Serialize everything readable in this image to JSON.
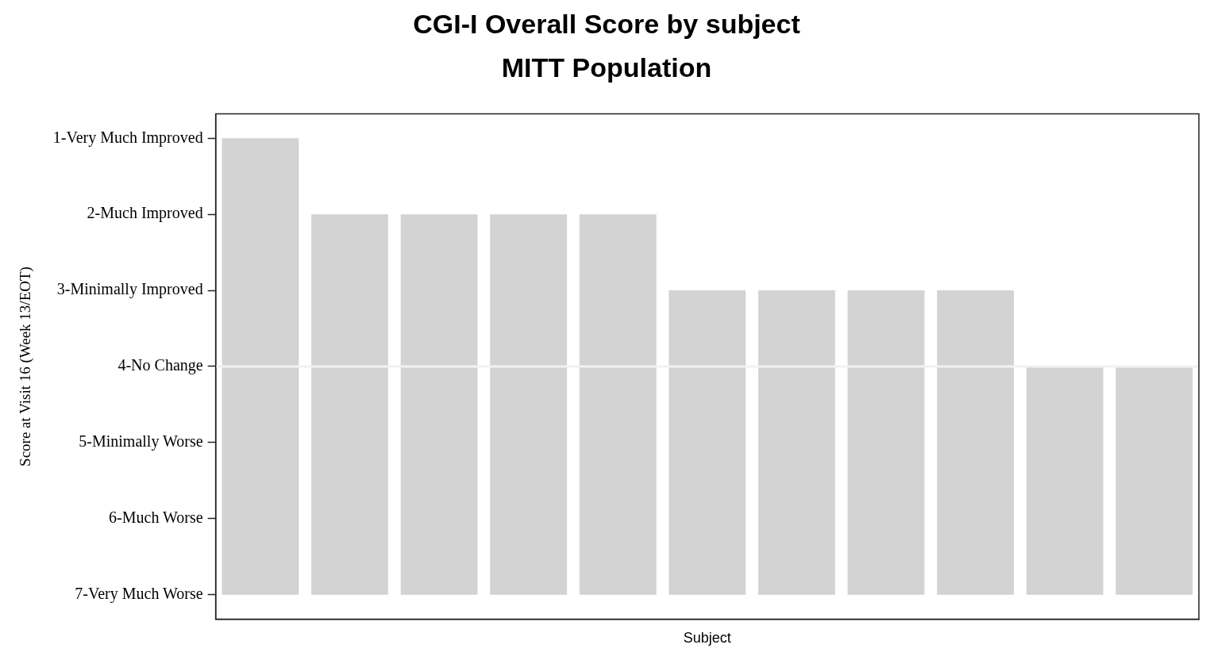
{
  "chart_data": {
    "type": "bar",
    "title": "CGI-I Overall Score by subject",
    "subtitle": "MITT Population",
    "xlabel": "Subject",
    "ylabel": "Score at Visit 16 (Week 13/EOT)",
    "categories": [
      null,
      null,
      null,
      null,
      null,
      null,
      null,
      null,
      null,
      null,
      null
    ],
    "values": [
      -6,
      -5,
      -5,
      -5,
      -5,
      -4,
      -4,
      -4,
      -4,
      -3,
      -3
    ],
    "base": [
      7,
      7,
      7,
      7,
      7,
      7,
      7,
      7,
      7,
      7,
      7
    ],
    "color": "#d3d3d3",
    "ylim": [
      7.32,
      0.68
    ],
    "yticks": [
      {
        "value": 1,
        "label": "1-Very Much Improved"
      },
      {
        "value": 2,
        "label": "2-Much Improved"
      },
      {
        "value": 3,
        "label": "3-Minimally Improved"
      },
      {
        "value": 4,
        "label": "4-No Change"
      },
      {
        "value": 5,
        "label": "5-Minimally Worse"
      },
      {
        "value": 6,
        "label": "6-Much Worse"
      },
      {
        "value": 7,
        "label": "7-Very Much Worse"
      }
    ],
    "ref_lines": [
      {
        "axis": "y",
        "value": 4,
        "color": "#f2f2f2"
      }
    ],
    "grid": false,
    "legend": false
  }
}
